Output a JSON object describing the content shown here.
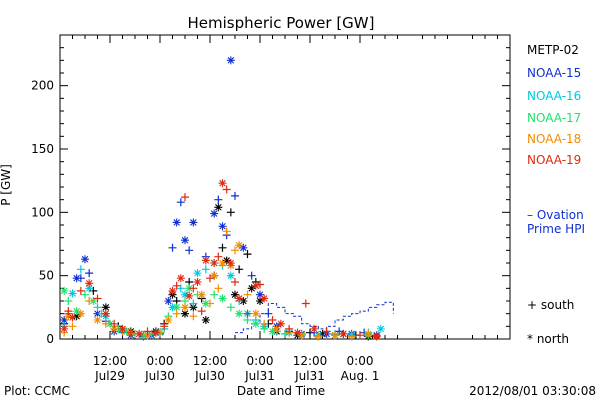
{
  "chart_data": {
    "type": "scatter",
    "title": "Hemispheric Power [GW]",
    "xlabel": "Date and Time",
    "ylabel": "P [GW]",
    "x_range_hours": [
      0,
      108
    ],
    "ylim": [
      0,
      240
    ],
    "y_ticks": [
      0,
      50,
      100,
      150,
      200
    ],
    "x_ticks": [
      {
        "h": 12,
        "top": "12:00",
        "bottom": "Jul29"
      },
      {
        "h": 24,
        "top": "0:00",
        "bottom": "Jul30"
      },
      {
        "h": 36,
        "top": "12:00",
        "bottom": "Jul30"
      },
      {
        "h": 48,
        "top": "0:00",
        "bottom": "Jul31"
      },
      {
        "h": 60,
        "top": "12:00",
        "bottom": "Jul31"
      },
      {
        "h": 72,
        "top": "0:00",
        "bottom": "Aug. 1"
      }
    ],
    "series": [
      {
        "name": "METP-02",
        "color": "#000000",
        "points": [
          [
            1,
            12
          ],
          [
            4,
            18
          ],
          [
            8,
            38
          ],
          [
            11,
            25
          ],
          [
            14,
            10
          ],
          [
            17,
            6
          ],
          [
            20,
            3
          ],
          [
            23,
            6
          ],
          [
            25,
            12
          ],
          [
            27,
            35
          ],
          [
            28,
            30
          ],
          [
            30,
            20
          ],
          [
            31,
            45
          ],
          [
            32,
            25
          ],
          [
            34,
            32
          ],
          [
            35,
            15
          ],
          [
            37,
            50
          ],
          [
            38,
            104
          ],
          [
            39,
            72
          ],
          [
            40,
            62
          ],
          [
            41,
            100
          ],
          [
            42,
            35
          ],
          [
            43,
            55
          ],
          [
            44,
            30
          ],
          [
            45,
            67
          ],
          [
            46,
            40
          ],
          [
            47,
            45
          ],
          [
            48,
            30
          ],
          [
            50,
            12
          ],
          [
            52,
            6
          ],
          [
            54,
            4
          ],
          [
            57,
            3
          ],
          [
            60,
            5
          ],
          [
            63,
            4
          ],
          [
            66,
            3
          ],
          [
            68,
            4
          ],
          [
            71,
            3
          ],
          [
            74,
            2
          ]
        ]
      },
      {
        "name": "NOAA-15",
        "color": "#1030d0",
        "points": [
          [
            1,
            15
          ],
          [
            2,
            20
          ],
          [
            4,
            48
          ],
          [
            5,
            48
          ],
          [
            6,
            63
          ],
          [
            7,
            52
          ],
          [
            9,
            20
          ],
          [
            11,
            14
          ],
          [
            13,
            6
          ],
          [
            15,
            5
          ],
          [
            17,
            3
          ],
          [
            20,
            2
          ],
          [
            22,
            3
          ],
          [
            24,
            4
          ],
          [
            26,
            30
          ],
          [
            27,
            72
          ],
          [
            28,
            92
          ],
          [
            29,
            108
          ],
          [
            30,
            78
          ],
          [
            31,
            70
          ],
          [
            32,
            92
          ],
          [
            35,
            65
          ],
          [
            37,
            99
          ],
          [
            38,
            110
          ],
          [
            39,
            89
          ],
          [
            40,
            82
          ],
          [
            41,
            220
          ],
          [
            42,
            113
          ],
          [
            44,
            72
          ],
          [
            46,
            50
          ],
          [
            48,
            35
          ],
          [
            50,
            20
          ],
          [
            52,
            10
          ],
          [
            55,
            6
          ],
          [
            58,
            4
          ],
          [
            61,
            5
          ],
          [
            64,
            4
          ],
          [
            67,
            6
          ],
          [
            70,
            4
          ],
          [
            73,
            5
          ],
          [
            76,
            3
          ]
        ]
      },
      {
        "name": "NOAA-16",
        "color": "#00c8e0",
        "points": [
          [
            1,
            10
          ],
          [
            3,
            36
          ],
          [
            5,
            55
          ],
          [
            7,
            40
          ],
          [
            9,
            25
          ],
          [
            11,
            18
          ],
          [
            13,
            10
          ],
          [
            15,
            7
          ],
          [
            17,
            5
          ],
          [
            19,
            4
          ],
          [
            21,
            3
          ],
          [
            23,
            5
          ],
          [
            25,
            8
          ],
          [
            27,
            25
          ],
          [
            29,
            40
          ],
          [
            30,
            35
          ],
          [
            32,
            28
          ],
          [
            33,
            52
          ],
          [
            35,
            55
          ],
          [
            37,
            60
          ],
          [
            39,
            58
          ],
          [
            41,
            50
          ],
          [
            43,
            30
          ],
          [
            45,
            20
          ],
          [
            47,
            15
          ],
          [
            49,
            10
          ],
          [
            52,
            6
          ],
          [
            55,
            5
          ],
          [
            58,
            4
          ],
          [
            62,
            3
          ],
          [
            66,
            4
          ],
          [
            70,
            3
          ],
          [
            74,
            5
          ],
          [
            77,
            8
          ]
        ]
      },
      {
        "name": "NOAA-17",
        "color": "#20e070",
        "points": [
          [
            1,
            38
          ],
          [
            2,
            30
          ],
          [
            4,
            22
          ],
          [
            6,
            35
          ],
          [
            8,
            30
          ],
          [
            10,
            20
          ],
          [
            12,
            12
          ],
          [
            14,
            8
          ],
          [
            16,
            6
          ],
          [
            18,
            4
          ],
          [
            20,
            3
          ],
          [
            22,
            4
          ],
          [
            24,
            5
          ],
          [
            26,
            18
          ],
          [
            28,
            25
          ],
          [
            30,
            30
          ],
          [
            31,
            40
          ],
          [
            33,
            35
          ],
          [
            35,
            28
          ],
          [
            37,
            35
          ],
          [
            39,
            32
          ],
          [
            41,
            25
          ],
          [
            43,
            20
          ],
          [
            45,
            15
          ],
          [
            47,
            12
          ],
          [
            49,
            8
          ],
          [
            51,
            6
          ],
          [
            54,
            4
          ],
          [
            58,
            3
          ],
          [
            62,
            2
          ],
          [
            66,
            3
          ],
          [
            70,
            2
          ],
          [
            74,
            3
          ]
        ]
      },
      {
        "name": "NOAA-18",
        "color": "#f08c00",
        "points": [
          [
            1,
            5
          ],
          [
            2,
            18
          ],
          [
            3,
            10
          ],
          [
            5,
            20
          ],
          [
            7,
            30
          ],
          [
            9,
            15
          ],
          [
            11,
            12
          ],
          [
            13,
            8
          ],
          [
            15,
            6
          ],
          [
            17,
            5
          ],
          [
            19,
            4
          ],
          [
            21,
            3
          ],
          [
            24,
            5
          ],
          [
            26,
            15
          ],
          [
            28,
            20
          ],
          [
            30,
            25
          ],
          [
            32,
            18
          ],
          [
            34,
            35
          ],
          [
            36,
            28
          ],
          [
            37,
            50
          ],
          [
            38,
            40
          ],
          [
            39,
            60
          ],
          [
            40,
            85
          ],
          [
            41,
            58
          ],
          [
            42,
            70
          ],
          [
            43,
            74
          ],
          [
            45,
            35
          ],
          [
            47,
            20
          ],
          [
            49,
            12
          ],
          [
            52,
            8
          ],
          [
            55,
            5
          ],
          [
            58,
            3
          ],
          [
            62,
            2
          ],
          [
            66,
            3
          ],
          [
            70,
            2
          ],
          [
            74,
            4
          ]
        ]
      },
      {
        "name": "NOAA-19",
        "color": "#e02a10",
        "points": [
          [
            1,
            8
          ],
          [
            2,
            22
          ],
          [
            3,
            17
          ],
          [
            5,
            38
          ],
          [
            7,
            44
          ],
          [
            9,
            32
          ],
          [
            11,
            20
          ],
          [
            13,
            12
          ],
          [
            15,
            8
          ],
          [
            17,
            5
          ],
          [
            19,
            4
          ],
          [
            21,
            6
          ],
          [
            23,
            5
          ],
          [
            25,
            10
          ],
          [
            27,
            38
          ],
          [
            28,
            42
          ],
          [
            29,
            48
          ],
          [
            30,
            112
          ],
          [
            31,
            34
          ],
          [
            32,
            40
          ],
          [
            33,
            45
          ],
          [
            34,
            22
          ],
          [
            35,
            62
          ],
          [
            36,
            48
          ],
          [
            37,
            60
          ],
          [
            38,
            65
          ],
          [
            39,
            123
          ],
          [
            40,
            118
          ],
          [
            41,
            60
          ],
          [
            42,
            45
          ],
          [
            43,
            32
          ],
          [
            45,
            20
          ],
          [
            47,
            42
          ],
          [
            48,
            43
          ],
          [
            49,
            32
          ],
          [
            51,
            15
          ],
          [
            53,
            12
          ],
          [
            55,
            8
          ],
          [
            57,
            5
          ],
          [
            59,
            28
          ],
          [
            61,
            8
          ],
          [
            64,
            6
          ],
          [
            68,
            4
          ],
          [
            72,
            3
          ],
          [
            76,
            2
          ]
        ]
      }
    ],
    "ovation_line": {
      "name": "Ovation Prime HPI",
      "color": "#1030d0",
      "points": [
        [
          42,
          5
        ],
        [
          44,
          8
        ],
        [
          46,
          12
        ],
        [
          48,
          20
        ],
        [
          50,
          28
        ],
        [
          52,
          25
        ],
        [
          54,
          20
        ],
        [
          56,
          18
        ],
        [
          58,
          12
        ],
        [
          60,
          10
        ],
        [
          62,
          8
        ],
        [
          64,
          10
        ],
        [
          66,
          15
        ],
        [
          68,
          18
        ],
        [
          70,
          20
        ],
        [
          72,
          22
        ],
        [
          74,
          25
        ],
        [
          76,
          27
        ],
        [
          78,
          29
        ],
        [
          80,
          20
        ]
      ]
    }
  },
  "legend": {
    "satellites": [
      {
        "name": "METP-02",
        "color": "#000000"
      },
      {
        "name": "NOAA-15",
        "color": "#1030d0"
      },
      {
        "name": "NOAA-16",
        "color": "#00c8e0"
      },
      {
        "name": "NOAA-17",
        "color": "#20e070"
      },
      {
        "name": "NOAA-18",
        "color": "#f08c00"
      },
      {
        "name": "NOAA-19",
        "color": "#e02a10"
      }
    ],
    "ovation_line1": "– Ovation",
    "ovation_line2": "Prime HPI",
    "south_label": "+ south",
    "north_label": "* north"
  },
  "footer": {
    "plot_credit": "Plot: CCMC",
    "timestamp": "2012/08/01  03:30:08"
  }
}
